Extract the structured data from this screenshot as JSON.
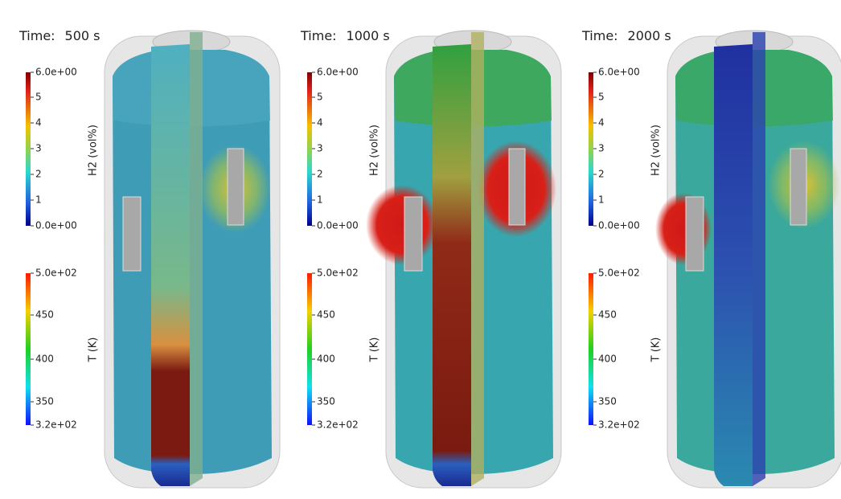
{
  "panels": [
    {
      "time_label": "Time:",
      "time": "500 s",
      "h2_colorbar": {
        "label": "H2 (vol%)",
        "ticks": [
          "6.0e+00",
          "5",
          "4",
          "3",
          "2",
          "1",
          "0.0e+00"
        ]
      },
      "t_colorbar": {
        "label": "T (K)",
        "ticks": [
          "5.0e+02",
          "450",
          "400",
          "350",
          "3.2e+02"
        ]
      }
    },
    {
      "time_label": "Time:",
      "time": "1000 s",
      "h2_colorbar": {
        "label": "H2 (vol%)",
        "ticks": [
          "6.0e+00",
          "5",
          "4",
          "3",
          "2",
          "1",
          "0.0e+00"
        ]
      },
      "t_colorbar": {
        "label": "T (K)",
        "ticks": [
          "5.0e+02",
          "450",
          "400",
          "350",
          "3.2e+02"
        ]
      }
    },
    {
      "time_label": "Time:",
      "time": "2000 s",
      "h2_colorbar": {
        "label": "H2 (vol%)",
        "ticks": [
          "6.0e+00",
          "5",
          "4",
          "3",
          "2",
          "1",
          "0.0e+00"
        ]
      },
      "t_colorbar": {
        "label": "T (K)",
        "ticks": [
          "5.0e+02",
          "450",
          "400",
          "350",
          "3.2e+02"
        ]
      }
    }
  ]
}
